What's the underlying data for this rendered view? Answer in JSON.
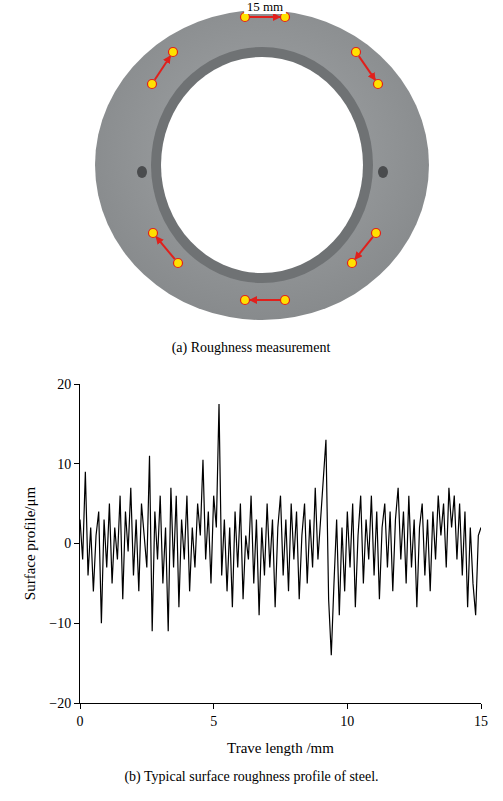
{
  "figure_a": {
    "dimension_label": "15 mm",
    "caption": "(a) Roughness measurement"
  },
  "chart_data": {
    "type": "line",
    "caption": "(b) Typical surface roughness profile of steel.",
    "x_label": "Trave length /mm",
    "y_label": "Surface profile/μm",
    "color": "#000000",
    "grid": false,
    "xlim": [
      0,
      15
    ],
    "xticks": [
      0,
      5,
      10,
      15
    ],
    "ylim": [
      -20,
      20
    ],
    "yticks": [
      {
        "value": -20,
        "label": "−20"
      },
      {
        "value": -10,
        "label": "−10"
      },
      0,
      10,
      20
    ],
    "x": [
      0,
      0.1,
      0.2,
      0.3,
      0.4,
      0.5,
      0.6,
      0.7,
      0.8,
      0.9,
      1.0,
      1.1,
      1.2,
      1.3,
      1.4,
      1.5,
      1.6,
      1.7,
      1.8,
      1.9,
      2.0,
      2.1,
      2.2,
      2.3,
      2.4,
      2.5,
      2.6,
      2.7,
      2.8,
      2.9,
      3.0,
      3.1,
      3.2,
      3.3,
      3.4,
      3.5,
      3.6,
      3.7,
      3.8,
      3.9,
      4.0,
      4.1,
      4.2,
      4.3,
      4.4,
      4.5,
      4.6,
      4.7,
      4.8,
      4.9,
      5.0,
      5.1,
      5.2,
      5.3,
      5.4,
      5.5,
      5.6,
      5.7,
      5.8,
      5.9,
      6.0,
      6.1,
      6.2,
      6.3,
      6.4,
      6.5,
      6.6,
      6.7,
      6.8,
      6.9,
      7.0,
      7.1,
      7.2,
      7.3,
      7.4,
      7.5,
      7.6,
      7.7,
      7.8,
      7.9,
      8.0,
      8.1,
      8.2,
      8.3,
      8.4,
      8.5,
      8.6,
      8.7,
      8.8,
      8.9,
      9.0,
      9.1,
      9.2,
      9.3,
      9.4,
      9.5,
      9.6,
      9.7,
      9.8,
      9.9,
      10.0,
      10.1,
      10.2,
      10.3,
      10.4,
      10.5,
      10.6,
      10.7,
      10.8,
      10.9,
      11.0,
      11.1,
      11.2,
      11.3,
      11.4,
      11.5,
      11.6,
      11.7,
      11.8,
      11.9,
      12.0,
      12.1,
      12.2,
      12.3,
      12.4,
      12.5,
      12.6,
      12.7,
      12.8,
      12.9,
      13.0,
      13.1,
      13.2,
      13.3,
      13.4,
      13.5,
      13.6,
      13.7,
      13.8,
      13.9,
      14.0,
      14.1,
      14.2,
      14.3,
      14.4,
      14.5,
      14.6,
      14.7,
      14.8,
      14.9,
      15.0
    ],
    "values": [
      3,
      -2,
      9,
      -4,
      2,
      -6,
      1,
      4,
      -10,
      3,
      -3,
      5,
      -5,
      2,
      -2,
      6,
      -7,
      4,
      -1,
      7,
      -4,
      3,
      -6,
      5,
      1,
      -3,
      11,
      -11,
      4,
      -2,
      6,
      -5,
      2,
      -11,
      7,
      -3,
      6,
      -8,
      3,
      -2,
      6,
      -6,
      2,
      -3,
      5,
      1,
      10.5,
      -2,
      4,
      -5,
      6,
      2,
      17.5,
      -4,
      3,
      -6,
      2,
      -8,
      4,
      -3,
      5,
      -7,
      1,
      -2,
      6,
      -5,
      3,
      -9,
      2,
      -4,
      5,
      -3,
      3,
      -8,
      2,
      6,
      -4,
      3,
      -6,
      5,
      -2,
      4,
      -7,
      1,
      5,
      -5,
      3,
      -3,
      7,
      -2,
      3,
      8,
      13,
      -7,
      -14,
      -5,
      3,
      -9,
      2,
      -6,
      4,
      -3,
      5,
      -8,
      1,
      6,
      -5,
      3,
      -2,
      6,
      -4,
      4,
      -7,
      2,
      5,
      -3,
      4,
      -6,
      3,
      7,
      -2,
      4,
      -5,
      6,
      -3,
      3,
      -8,
      2,
      5,
      -4,
      3,
      -6,
      4,
      -2,
      6,
      1,
      5,
      -3,
      7,
      2,
      6,
      -2,
      5,
      -4,
      4,
      -8,
      2,
      -5,
      -9,
      1,
      2
    ]
  }
}
